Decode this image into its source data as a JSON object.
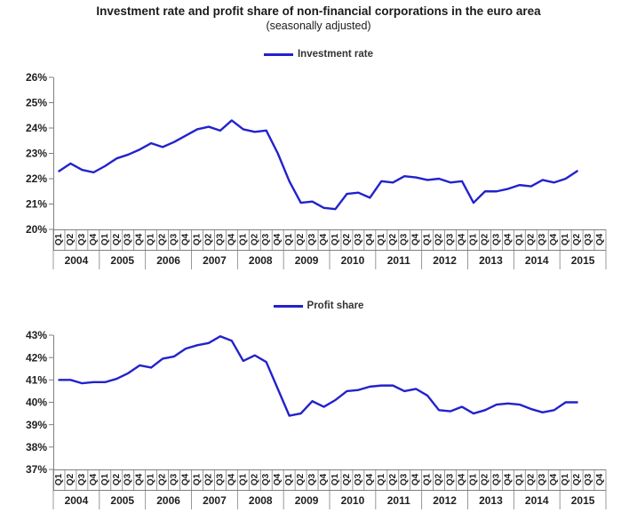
{
  "title": "Investment rate and profit share of non-financial corporations in the euro area",
  "subtitle": "(seasonally adjusted)",
  "colors": {
    "line": "#2222cc",
    "axis": "#7f7f7f",
    "label_text": "#1f1f1f",
    "legend_text": "#333333"
  },
  "x_axis": {
    "quarter_labels": [
      "Q1",
      "Q2",
      "Q3",
      "Q4"
    ],
    "years": [
      "2004",
      "2005",
      "2006",
      "2007",
      "2008",
      "2009",
      "2010",
      "2011",
      "2012",
      "2013",
      "2014",
      "2015"
    ],
    "total_slots": 48
  },
  "chart_data": [
    {
      "type": "line",
      "legend": [
        "Investment rate"
      ],
      "legend_position": "top-center",
      "grid": false,
      "xlabel": "",
      "ylabel": "",
      "ylim": [
        20,
        26
      ],
      "ytick_step": 1,
      "yticks": [
        "26%",
        "25%",
        "24%",
        "23%",
        "22%",
        "21%",
        "20%"
      ],
      "x_start": "2004 Q1",
      "x_end": "2015 Q2",
      "values": [
        22.3,
        22.6,
        22.35,
        22.25,
        22.5,
        22.8,
        22.95,
        23.15,
        23.4,
        23.25,
        23.45,
        23.7,
        23.95,
        24.05,
        23.9,
        24.3,
        23.95,
        23.85,
        23.9,
        23.0,
        21.9,
        21.05,
        21.1,
        20.85,
        20.8,
        21.4,
        21.45,
        21.25,
        21.9,
        21.85,
        22.1,
        22.05,
        21.95,
        22.0,
        21.85,
        21.9,
        21.05,
        21.5,
        21.5,
        21.6,
        21.75,
        21.7,
        21.95,
        21.85,
        22.0,
        22.3
      ]
    },
    {
      "type": "line",
      "legend": [
        "Profit share"
      ],
      "legend_position": "top-center",
      "grid": false,
      "xlabel": "",
      "ylabel": "",
      "ylim": [
        37,
        43
      ],
      "ytick_step": 1,
      "yticks": [
        "43%",
        "42%",
        "41%",
        "40%",
        "39%",
        "38%",
        "37%"
      ],
      "x_start": "2004 Q1",
      "x_end": "2015 Q2",
      "values": [
        41.0,
        41.0,
        40.85,
        40.9,
        40.9,
        41.05,
        41.3,
        41.65,
        41.55,
        41.95,
        42.05,
        42.4,
        42.55,
        42.65,
        42.95,
        42.75,
        41.85,
        42.1,
        41.8,
        40.6,
        39.4,
        39.5,
        40.05,
        39.8,
        40.1,
        40.5,
        40.55,
        40.7,
        40.75,
        40.75,
        40.5,
        40.6,
        40.3,
        39.65,
        39.6,
        39.8,
        39.5,
        39.65,
        39.9,
        39.95,
        39.9,
        39.7,
        39.55,
        39.65,
        40.0,
        40.0
      ]
    }
  ]
}
